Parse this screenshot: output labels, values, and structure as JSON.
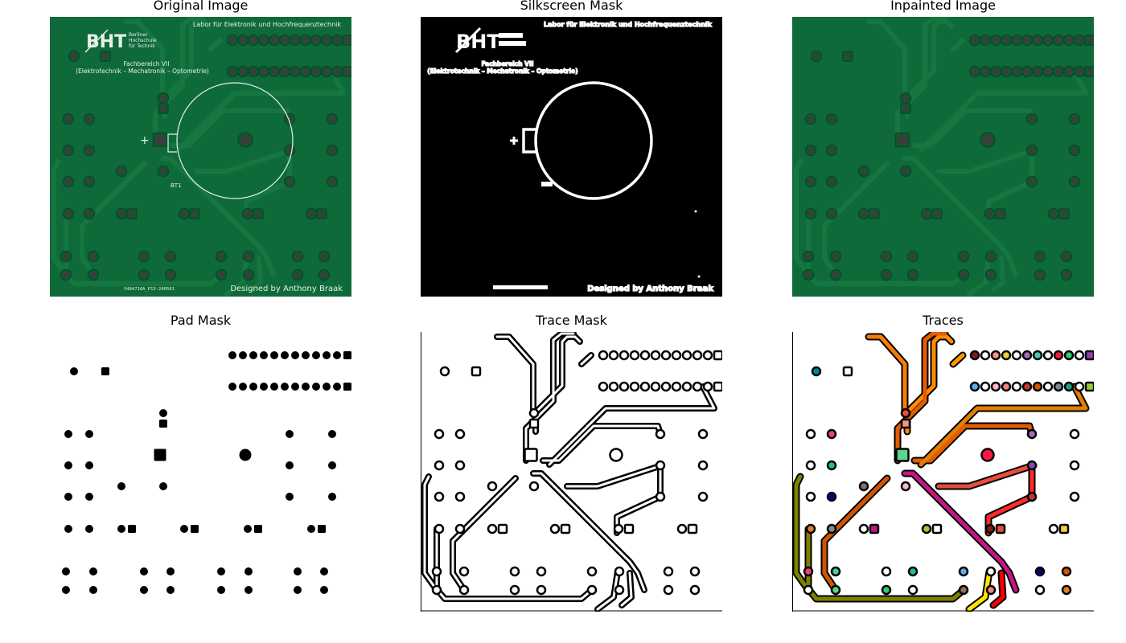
{
  "titles": {
    "original": "Original Image",
    "silkscreen": "Silkscreen Mask",
    "inpainted": "Inpainted Image",
    "pad": "Pad Mask",
    "trace": "Trace Mask",
    "traces": "Traces"
  },
  "board_text": {
    "logo": "BHT",
    "logo_sub": [
      "Berliner",
      "Hochschule",
      "für Technik"
    ],
    "lab": "Labor für Elektronik und Hochfrequenztechnik",
    "faculty": "Fachbereich VII",
    "programs": "(Elektrotechnik – Mechatronik – Optometrie)",
    "part_label": "BT1",
    "plus": "+",
    "serial": "5484716A_P13-240501",
    "designer": "Designed by Anthony Braak"
  },
  "colors": {
    "pcb": "#0f6a3a",
    "pcb_dark": "#0b5a30",
    "trace_on_pcb": "#15773f",
    "silk": "#e8efe9",
    "pad_hole": "#3a3f3c"
  }
}
